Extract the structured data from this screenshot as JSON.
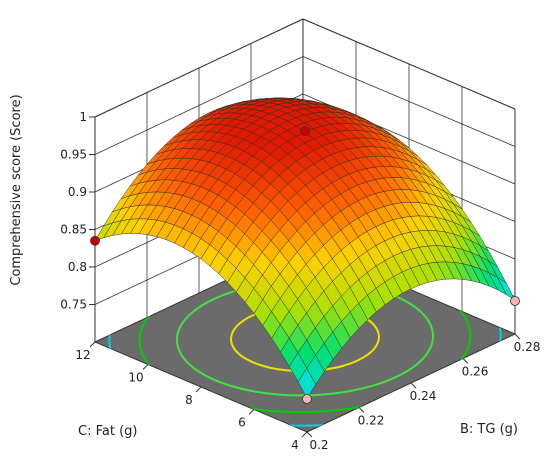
{
  "chart_data": {
    "type": "surface-3d",
    "zlabel": "Comprehensive score (Score)",
    "xlabel": "B: TG (g)",
    "ylabel": "C: Fat (g)",
    "x_ticks": [
      "0.2",
      "0.22",
      "0.24",
      "0.26",
      "0.28"
    ],
    "y_ticks": [
      "4",
      "6",
      "8",
      "10",
      "12"
    ],
    "z_ticks": [
      "0.75",
      "0.8",
      "0.85",
      "0.9",
      "0.95",
      "1"
    ],
    "xlim": [
      0.2,
      0.28
    ],
    "ylim": [
      4,
      12
    ],
    "zlim": [
      0.7,
      1.0
    ],
    "surface": {
      "model": "quadratic",
      "peak": {
        "x": 0.24,
        "y": 8,
        "z": 0.96
      },
      "corner_values": [
        {
          "x": 0.2,
          "y": 4,
          "z": 0.745
        },
        {
          "x": 0.28,
          "y": 4,
          "z": 0.745
        },
        {
          "x": 0.2,
          "y": 12,
          "z": 0.835
        },
        {
          "x": 0.28,
          "y": 12,
          "z": 0.87
        }
      ],
      "colormap": [
        "#00e0ff",
        "#00e070",
        "#b0e000",
        "#ffd000",
        "#ff6000",
        "#e01800"
      ]
    },
    "design_points": [
      {
        "x": 0.24,
        "y": 8,
        "z": 0.976,
        "color": "#cc0000"
      },
      {
        "x": 0.2,
        "y": 12,
        "z": 0.835,
        "color": "#cc0000"
      },
      {
        "x": 0.2,
        "y": 4,
        "z": 0.744,
        "color": "#f2b6b6"
      },
      {
        "x": 0.28,
        "y": 4,
        "z": 0.744,
        "color": "#f2b6b6"
      }
    ],
    "floor_contours": {
      "background": "#6b6b6b",
      "levels": [
        {
          "z": 0.94,
          "color": "#f0e000"
        },
        {
          "z": 0.9,
          "color": "#40e040"
        },
        {
          "z": 0.86,
          "color": "#00d000"
        },
        {
          "z": 0.82,
          "color": "#00d0e0"
        }
      ]
    },
    "grid": true
  }
}
